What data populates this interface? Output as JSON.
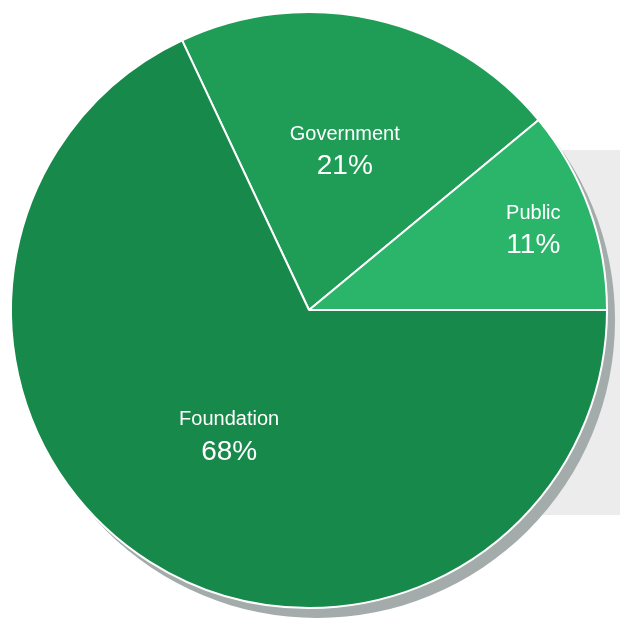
{
  "chart_data": {
    "type": "pie",
    "categories": [
      "Government",
      "Public",
      "Foundation"
    ],
    "values": [
      21,
      11,
      68
    ],
    "value_labels": [
      "21%",
      "11%",
      "68%"
    ],
    "colors": [
      "#1f9d57",
      "#2bb56a",
      "#17894b"
    ],
    "data_labels": true
  }
}
